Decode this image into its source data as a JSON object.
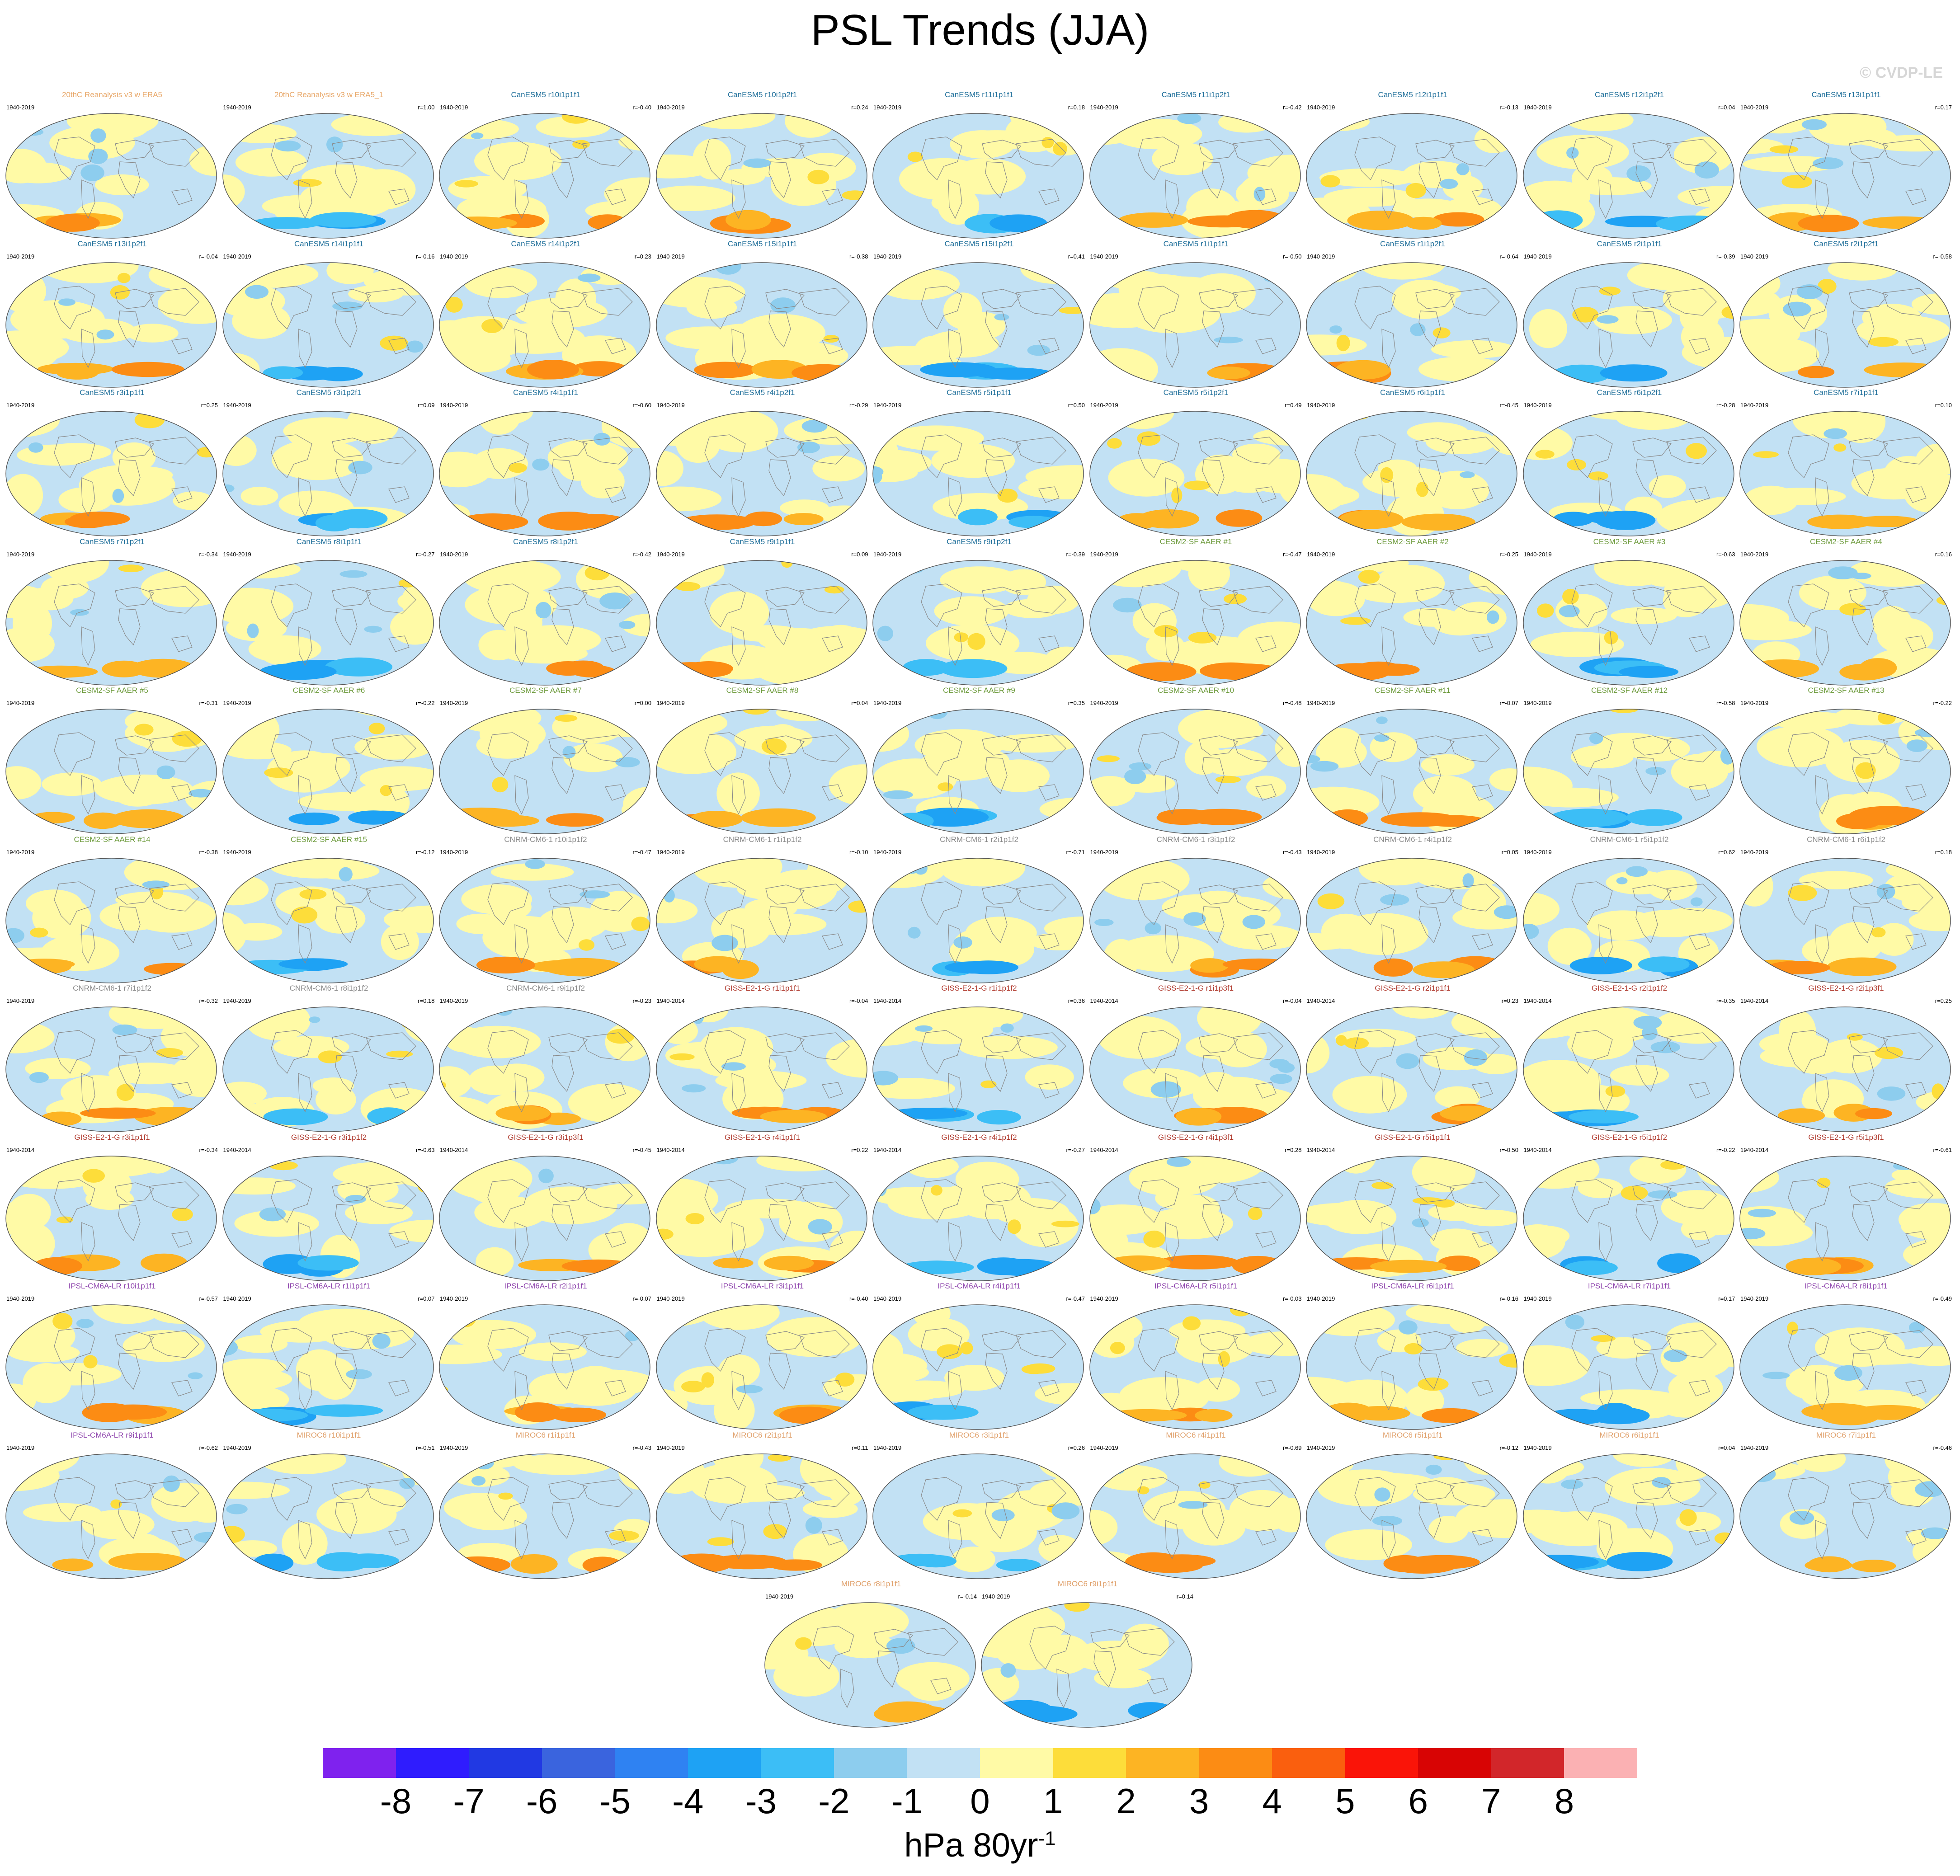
{
  "title": "PSL Trends (JJA)",
  "copyright": "© CVDP-LE",
  "colors": {
    "reanalysis": "#e8a86a",
    "CanESM5": "#1f6f9a",
    "CESM2-SF AAER": "#6d9b3c",
    "CNRM-CM6-1": "#8a8a8a",
    "GISS-E2-1-G": "#b03a2e",
    "IPSL-CM6A-LR": "#8e44ad",
    "MIROC6": "#e0a06a"
  },
  "chart_data": {
    "type": "heatmap",
    "title": "PSL Trends (JJA)",
    "variable": "PSL",
    "season": "JJA",
    "projection": "global map",
    "colorbar": {
      "label": "hPa 80yr",
      "label_exponent": "-1",
      "ticks": [
        "-8",
        "-7",
        "-6",
        "-5",
        "-4",
        "-3",
        "-2",
        "-1",
        "0",
        "1",
        "2",
        "3",
        "4",
        "5",
        "6",
        "7",
        "8"
      ],
      "colors": [
        "#7f22ee",
        "#2f1cfe",
        "#2139e3",
        "#3a64de",
        "#2f82f2",
        "#1ea2f4",
        "#3cbef6",
        "#8dcdee",
        "#c2e1f4",
        "#fffaa6",
        "#fddd3a",
        "#fdb423",
        "#fc8c14",
        "#fa5f0e",
        "#fa1408",
        "#d80404",
        "#d2262a",
        "#fbb1b3"
      ]
    },
    "panels": [
      {
        "title": "20thC Reanalysis v3 w ERA5",
        "group": "reanalysis",
        "period": "1940-2019",
        "r": ""
      },
      {
        "title": "20thC Reanalysis v3 w ERA5_1",
        "group": "reanalysis",
        "period": "1940-2019",
        "r": "r=1.00"
      },
      {
        "title": "CanESM5 r10i1p1f1",
        "group": "CanESM5",
        "period": "1940-2019",
        "r": "r=-0.40"
      },
      {
        "title": "CanESM5 r10i1p2f1",
        "group": "CanESM5",
        "period": "1940-2019",
        "r": "r=0.24"
      },
      {
        "title": "CanESM5 r11i1p1f1",
        "group": "CanESM5",
        "period": "1940-2019",
        "r": "r=0.18"
      },
      {
        "title": "CanESM5 r11i1p2f1",
        "group": "CanESM5",
        "period": "1940-2019",
        "r": "r=-0.42"
      },
      {
        "title": "CanESM5 r12i1p1f1",
        "group": "CanESM5",
        "period": "1940-2019",
        "r": "r=-0.13"
      },
      {
        "title": "CanESM5 r12i1p2f1",
        "group": "CanESM5",
        "period": "1940-2019",
        "r": "r=0.04"
      },
      {
        "title": "CanESM5 r13i1p1f1",
        "group": "CanESM5",
        "period": "1940-2019",
        "r": "r=0.17"
      },
      {
        "title": "CanESM5 r13i1p2f1",
        "group": "CanESM5",
        "period": "1940-2019",
        "r": "r=-0.04"
      },
      {
        "title": "CanESM5 r14i1p1f1",
        "group": "CanESM5",
        "period": "1940-2019",
        "r": "r=-0.16"
      },
      {
        "title": "CanESM5 r14i1p2f1",
        "group": "CanESM5",
        "period": "1940-2019",
        "r": "r=0.23"
      },
      {
        "title": "CanESM5 r15i1p1f1",
        "group": "CanESM5",
        "period": "1940-2019",
        "r": "r=-0.38"
      },
      {
        "title": "CanESM5 r15i1p2f1",
        "group": "CanESM5",
        "period": "1940-2019",
        "r": "r=0.41"
      },
      {
        "title": "CanESM5 r1i1p1f1",
        "group": "CanESM5",
        "period": "1940-2019",
        "r": "r=-0.50"
      },
      {
        "title": "CanESM5 r1i1p2f1",
        "group": "CanESM5",
        "period": "1940-2019",
        "r": "r=-0.64"
      },
      {
        "title": "CanESM5 r2i1p1f1",
        "group": "CanESM5",
        "period": "1940-2019",
        "r": "r=-0.39"
      },
      {
        "title": "CanESM5 r2i1p2f1",
        "group": "CanESM5",
        "period": "1940-2019",
        "r": "r=-0.58"
      },
      {
        "title": "CanESM5 r3i1p1f1",
        "group": "CanESM5",
        "period": "1940-2019",
        "r": "r=0.25"
      },
      {
        "title": "CanESM5 r3i1p2f1",
        "group": "CanESM5",
        "period": "1940-2019",
        "r": "r=0.09"
      },
      {
        "title": "CanESM5 r4i1p1f1",
        "group": "CanESM5",
        "period": "1940-2019",
        "r": "r=-0.60"
      },
      {
        "title": "CanESM5 r4i1p2f1",
        "group": "CanESM5",
        "period": "1940-2019",
        "r": "r=-0.29"
      },
      {
        "title": "CanESM5 r5i1p1f1",
        "group": "CanESM5",
        "period": "1940-2019",
        "r": "r=0.50"
      },
      {
        "title": "CanESM5 r5i1p2f1",
        "group": "CanESM5",
        "period": "1940-2019",
        "r": "r=0.49"
      },
      {
        "title": "CanESM5 r6i1p1f1",
        "group": "CanESM5",
        "period": "1940-2019",
        "r": "r=-0.45"
      },
      {
        "title": "CanESM5 r6i1p2f1",
        "group": "CanESM5",
        "period": "1940-2019",
        "r": "r=-0.28"
      },
      {
        "title": "CanESM5 r7i1p1f1",
        "group": "CanESM5",
        "period": "1940-2019",
        "r": "r=0.10"
      },
      {
        "title": "CanESM5 r7i1p2f1",
        "group": "CanESM5",
        "period": "1940-2019",
        "r": "r=-0.34"
      },
      {
        "title": "CanESM5 r8i1p1f1",
        "group": "CanESM5",
        "period": "1940-2019",
        "r": "r=-0.27"
      },
      {
        "title": "CanESM5 r8i1p2f1",
        "group": "CanESM5",
        "period": "1940-2019",
        "r": "r=-0.42"
      },
      {
        "title": "CanESM5 r9i1p1f1",
        "group": "CanESM5",
        "period": "1940-2019",
        "r": "r=0.09"
      },
      {
        "title": "CanESM5 r9i1p2f1",
        "group": "CanESM5",
        "period": "1940-2019",
        "r": "r=-0.39"
      },
      {
        "title": "CESM2-SF AAER #1",
        "group": "CESM2-SF AAER",
        "period": "1940-2019",
        "r": "r=-0.47"
      },
      {
        "title": "CESM2-SF AAER #2",
        "group": "CESM2-SF AAER",
        "period": "1940-2019",
        "r": "r=-0.25"
      },
      {
        "title": "CESM2-SF AAER #3",
        "group": "CESM2-SF AAER",
        "period": "1940-2019",
        "r": "r=-0.63"
      },
      {
        "title": "CESM2-SF AAER #4",
        "group": "CESM2-SF AAER",
        "period": "1940-2019",
        "r": "r=0.16"
      },
      {
        "title": "CESM2-SF AAER #5",
        "group": "CESM2-SF AAER",
        "period": "1940-2019",
        "r": "r=-0.31"
      },
      {
        "title": "CESM2-SF AAER #6",
        "group": "CESM2-SF AAER",
        "period": "1940-2019",
        "r": "r=-0.22"
      },
      {
        "title": "CESM2-SF AAER #7",
        "group": "CESM2-SF AAER",
        "period": "1940-2019",
        "r": "r=0.00"
      },
      {
        "title": "CESM2-SF AAER #8",
        "group": "CESM2-SF AAER",
        "period": "1940-2019",
        "r": "r=0.04"
      },
      {
        "title": "CESM2-SF AAER #9",
        "group": "CESM2-SF AAER",
        "period": "1940-2019",
        "r": "r=0.35"
      },
      {
        "title": "CESM2-SF AAER #10",
        "group": "CESM2-SF AAER",
        "period": "1940-2019",
        "r": "r=-0.48"
      },
      {
        "title": "CESM2-SF AAER #11",
        "group": "CESM2-SF AAER",
        "period": "1940-2019",
        "r": "r=-0.07"
      },
      {
        "title": "CESM2-SF AAER #12",
        "group": "CESM2-SF AAER",
        "period": "1940-2019",
        "r": "r=-0.58"
      },
      {
        "title": "CESM2-SF AAER #13",
        "group": "CESM2-SF AAER",
        "period": "1940-2019",
        "r": "r=-0.22"
      },
      {
        "title": "CESM2-SF AAER #14",
        "group": "CESM2-SF AAER",
        "period": "1940-2019",
        "r": "r=-0.38"
      },
      {
        "title": "CESM2-SF AAER #15",
        "group": "CESM2-SF AAER",
        "period": "1940-2019",
        "r": "r=-0.12"
      },
      {
        "title": "CNRM-CM6-1 r10i1p1f2",
        "group": "CNRM-CM6-1",
        "period": "1940-2019",
        "r": "r=-0.47"
      },
      {
        "title": "CNRM-CM6-1 r1i1p1f2",
        "group": "CNRM-CM6-1",
        "period": "1940-2019",
        "r": "r=-0.10"
      },
      {
        "title": "CNRM-CM6-1 r2i1p1f2",
        "group": "CNRM-CM6-1",
        "period": "1940-2019",
        "r": "r=-0.71"
      },
      {
        "title": "CNRM-CM6-1 r3i1p1f2",
        "group": "CNRM-CM6-1",
        "period": "1940-2019",
        "r": "r=-0.43"
      },
      {
        "title": "CNRM-CM6-1 r4i1p1f2",
        "group": "CNRM-CM6-1",
        "period": "1940-2019",
        "r": "r=0.05"
      },
      {
        "title": "CNRM-CM6-1 r5i1p1f2",
        "group": "CNRM-CM6-1",
        "period": "1940-2019",
        "r": "r=0.62"
      },
      {
        "title": "CNRM-CM6-1 r6i1p1f2",
        "group": "CNRM-CM6-1",
        "period": "1940-2019",
        "r": "r=0.18"
      },
      {
        "title": "CNRM-CM6-1 r7i1p1f2",
        "group": "CNRM-CM6-1",
        "period": "1940-2019",
        "r": "r=-0.32"
      },
      {
        "title": "CNRM-CM6-1 r8i1p1f2",
        "group": "CNRM-CM6-1",
        "period": "1940-2019",
        "r": "r=0.18"
      },
      {
        "title": "CNRM-CM6-1 r9i1p1f2",
        "group": "CNRM-CM6-1",
        "period": "1940-2019",
        "r": "r=-0.23"
      },
      {
        "title": "GISS-E2-1-G r1i1p1f1",
        "group": "GISS-E2-1-G",
        "period": "1940-2014",
        "r": "r=-0.04"
      },
      {
        "title": "GISS-E2-1-G r1i1p1f2",
        "group": "GISS-E2-1-G",
        "period": "1940-2014",
        "r": "r=0.36"
      },
      {
        "title": "GISS-E2-1-G r1i1p3f1",
        "group": "GISS-E2-1-G",
        "period": "1940-2014",
        "r": "r=-0.04"
      },
      {
        "title": "GISS-E2-1-G r2i1p1f1",
        "group": "GISS-E2-1-G",
        "period": "1940-2014",
        "r": "r=0.23"
      },
      {
        "title": "GISS-E2-1-G r2i1p1f2",
        "group": "GISS-E2-1-G",
        "period": "1940-2014",
        "r": "r=-0.35"
      },
      {
        "title": "GISS-E2-1-G r2i1p3f1",
        "group": "GISS-E2-1-G",
        "period": "1940-2014",
        "r": "r=0.25"
      },
      {
        "title": "GISS-E2-1-G r3i1p1f1",
        "group": "GISS-E2-1-G",
        "period": "1940-2014",
        "r": "r=-0.34"
      },
      {
        "title": "GISS-E2-1-G r3i1p1f2",
        "group": "GISS-E2-1-G",
        "period": "1940-2014",
        "r": "r=-0.63"
      },
      {
        "title": "GISS-E2-1-G r3i1p3f1",
        "group": "GISS-E2-1-G",
        "period": "1940-2014",
        "r": "r=-0.45"
      },
      {
        "title": "GISS-E2-1-G r4i1p1f1",
        "group": "GISS-E2-1-G",
        "period": "1940-2014",
        "r": "r=0.22"
      },
      {
        "title": "GISS-E2-1-G r4i1p1f2",
        "group": "GISS-E2-1-G",
        "period": "1940-2014",
        "r": "r=-0.27"
      },
      {
        "title": "GISS-E2-1-G r4i1p3f1",
        "group": "GISS-E2-1-G",
        "period": "1940-2014",
        "r": "r=0.28"
      },
      {
        "title": "GISS-E2-1-G r5i1p1f1",
        "group": "GISS-E2-1-G",
        "period": "1940-2014",
        "r": "r=-0.50"
      },
      {
        "title": "GISS-E2-1-G r5i1p1f2",
        "group": "GISS-E2-1-G",
        "period": "1940-2014",
        "r": "r=-0.22"
      },
      {
        "title": "GISS-E2-1-G r5i1p3f1",
        "group": "GISS-E2-1-G",
        "period": "1940-2014",
        "r": "r=-0.61"
      },
      {
        "title": "IPSL-CM6A-LR r10i1p1f1",
        "group": "IPSL-CM6A-LR",
        "period": "1940-2019",
        "r": "r=-0.57"
      },
      {
        "title": "IPSL-CM6A-LR r1i1p1f1",
        "group": "IPSL-CM6A-LR",
        "period": "1940-2019",
        "r": "r=0.07"
      },
      {
        "title": "IPSL-CM6A-LR r2i1p1f1",
        "group": "IPSL-CM6A-LR",
        "period": "1940-2019",
        "r": "r=-0.07"
      },
      {
        "title": "IPSL-CM6A-LR r3i1p1f1",
        "group": "IPSL-CM6A-LR",
        "period": "1940-2019",
        "r": "r=-0.40"
      },
      {
        "title": "IPSL-CM6A-LR r4i1p1f1",
        "group": "IPSL-CM6A-LR",
        "period": "1940-2019",
        "r": "r=-0.47"
      },
      {
        "title": "IPSL-CM6A-LR r5i1p1f1",
        "group": "IPSL-CM6A-LR",
        "period": "1940-2019",
        "r": "r=-0.03"
      },
      {
        "title": "IPSL-CM6A-LR r6i1p1f1",
        "group": "IPSL-CM6A-LR",
        "period": "1940-2019",
        "r": "r=-0.16"
      },
      {
        "title": "IPSL-CM6A-LR r7i1p1f1",
        "group": "IPSL-CM6A-LR",
        "period": "1940-2019",
        "r": "r=0.17"
      },
      {
        "title": "IPSL-CM6A-LR r8i1p1f1",
        "group": "IPSL-CM6A-LR",
        "period": "1940-2019",
        "r": "r=-0.49"
      },
      {
        "title": "IPSL-CM6A-LR r9i1p1f1",
        "group": "IPSL-CM6A-LR",
        "period": "1940-2019",
        "r": "r=-0.62"
      },
      {
        "title": "MIROC6 r10i1p1f1",
        "group": "MIROC6",
        "period": "1940-2019",
        "r": "r=-0.51"
      },
      {
        "title": "MIROC6 r1i1p1f1",
        "group": "MIROC6",
        "period": "1940-2019",
        "r": "r=-0.43"
      },
      {
        "title": "MIROC6 r2i1p1f1",
        "group": "MIROC6",
        "period": "1940-2019",
        "r": "r=0.11"
      },
      {
        "title": "MIROC6 r3i1p1f1",
        "group": "MIROC6",
        "period": "1940-2019",
        "r": "r=0.26"
      },
      {
        "title": "MIROC6 r4i1p1f1",
        "group": "MIROC6",
        "period": "1940-2019",
        "r": "r=-0.69"
      },
      {
        "title": "MIROC6 r5i1p1f1",
        "group": "MIROC6",
        "period": "1940-2019",
        "r": "r=-0.12"
      },
      {
        "title": "MIROC6 r6i1p1f1",
        "group": "MIROC6",
        "period": "1940-2019",
        "r": "r=0.04"
      },
      {
        "title": "MIROC6 r7i1p1f1",
        "group": "MIROC6",
        "period": "1940-2019",
        "r": "r=-0.46"
      },
      {
        "title": "MIROC6 r8i1p1f1",
        "group": "MIROC6",
        "period": "1940-2019",
        "r": "r=-0.14"
      },
      {
        "title": "MIROC6 r9i1p1f1",
        "group": "MIROC6",
        "period": "1940-2019",
        "r": "r=0.14"
      }
    ]
  }
}
